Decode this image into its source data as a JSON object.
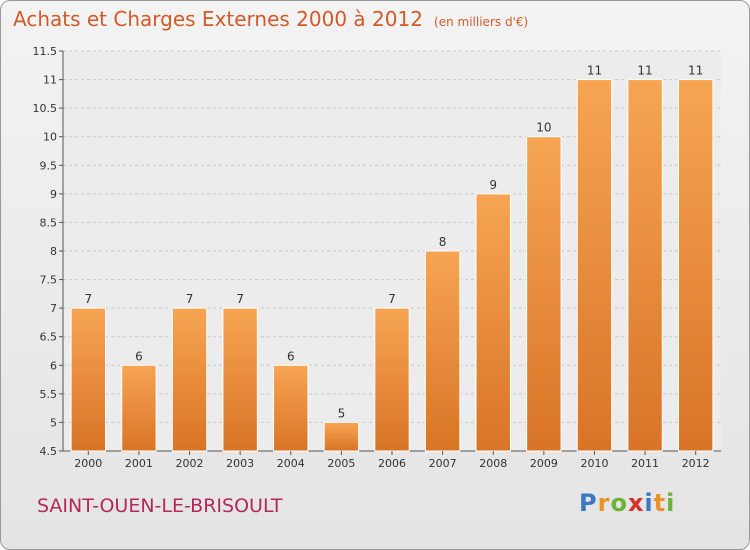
{
  "title": "Achats et Charges Externes 2000 à 2012",
  "unit": "(en milliers d'€)",
  "commune": "SAINT-OUEN-LE-BRISOULT",
  "logo": {
    "letters": [
      "P",
      "r",
      "o",
      "x",
      "i",
      "t",
      "i"
    ],
    "colors": [
      "#3b78c3",
      "#e8922a",
      "#6bb43a",
      "#d6302a",
      "#3b78c3",
      "#e8922a",
      "#6bb43a"
    ]
  },
  "colors": {
    "bar_light": "#f6a553",
    "bar_dark": "#d97426",
    "grid": "#c8c8c8",
    "axis": "#555555"
  },
  "chart_data": {
    "type": "bar",
    "title": "Achats et Charges Externes 2000 à 2012",
    "xlabel": "",
    "ylabel": "",
    "categories": [
      "2000",
      "2001",
      "2002",
      "2003",
      "2004",
      "2005",
      "2006",
      "2007",
      "2008",
      "2009",
      "2010",
      "2011",
      "2012"
    ],
    "values": [
      7,
      6,
      7,
      7,
      6,
      5,
      7,
      8,
      9,
      10,
      11,
      11,
      11
    ],
    "value_labels": [
      "7",
      "6",
      "7",
      "7",
      "6",
      "5",
      "7",
      "8",
      "9",
      "10",
      "11",
      "11",
      "11"
    ],
    "ylim": [
      4.5,
      11.5
    ],
    "yticks": [
      "4.5",
      "5",
      "5.5",
      "6",
      "6.5",
      "7",
      "7.5",
      "8",
      "8.5",
      "9",
      "9.5",
      "10",
      "10.5",
      "11",
      "11.5"
    ],
    "grid": true,
    "legend": "none"
  }
}
